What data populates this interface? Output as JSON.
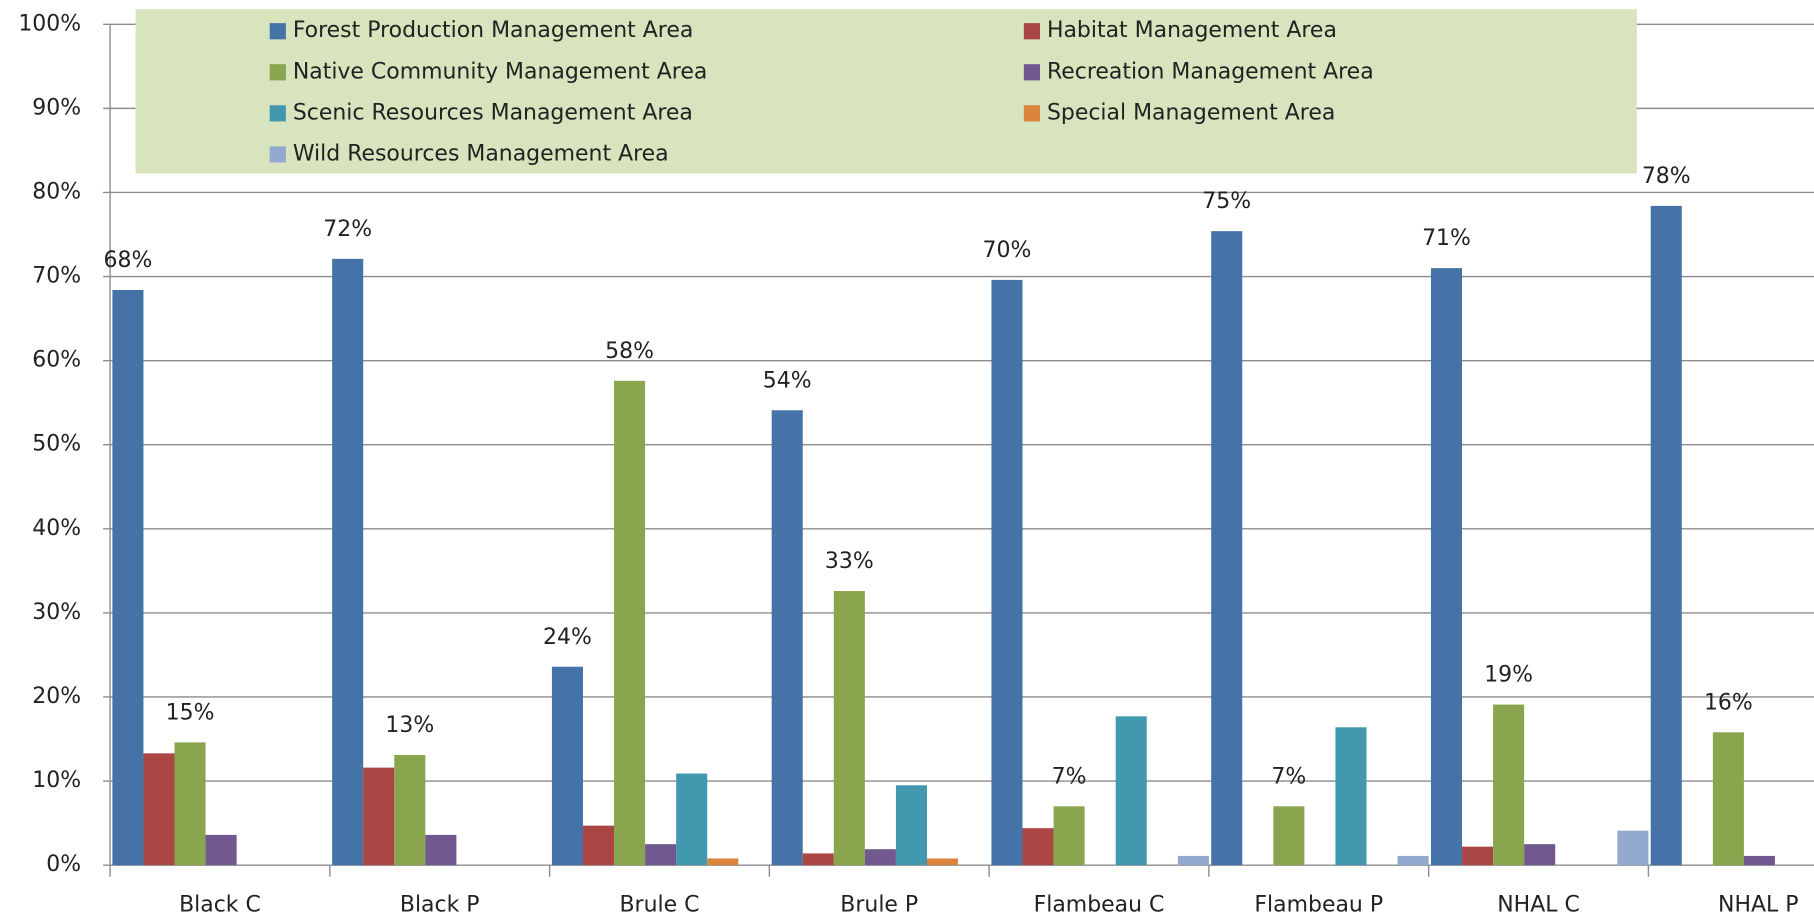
{
  "chart_data": {
    "type": "bar",
    "categories": [
      "Black C",
      "Black P",
      "Brule C",
      "Brule P",
      "Flambeau C",
      "Flambeau P",
      "NHAL C",
      "NHAL P"
    ],
    "series": [
      {
        "name": "Forest Production Management Area",
        "color": "#4572a7",
        "values": [
          68.4,
          72.1,
          23.6,
          54.1,
          69.6,
          75.4,
          71.0,
          78.4
        ],
        "value_labels": [
          "68%",
          "72%",
          "24%",
          "54%",
          "70%",
          "75%",
          "71%",
          "78%"
        ]
      },
      {
        "name": "Habitat Management Area",
        "color": "#aa4643",
        "values": [
          13.3,
          11.6,
          4.7,
          1.4,
          4.4,
          0,
          2.2,
          0
        ]
      },
      {
        "name": "Native Community Management Area",
        "color": "#89a54e",
        "values": [
          14.6,
          13.1,
          57.6,
          32.6,
          7.0,
          7.0,
          19.1,
          15.8
        ],
        "value_labels": [
          "15%",
          "13%",
          "58%",
          "33%",
          "7%",
          "7%",
          "19%",
          "16%"
        ]
      },
      {
        "name": "Recreation Management Area",
        "color": "#71588f",
        "values": [
          3.6,
          3.6,
          2.5,
          1.9,
          0,
          0,
          2.5,
          1.1
        ]
      },
      {
        "name": "Scenic Resources Management Area",
        "color": "#4198af",
        "values": [
          0,
          0,
          10.9,
          9.5,
          17.7,
          16.4,
          0,
          0
        ]
      },
      {
        "name": "Special Management Area",
        "color": "#db843d",
        "values": [
          0,
          0,
          0.8,
          0.8,
          0,
          0,
          0,
          0
        ]
      },
      {
        "name": "Wild Resources Management Area",
        "color": "#93a9cf",
        "values": [
          0,
          0,
          0,
          0,
          1.1,
          1.1,
          4.1,
          0
        ]
      }
    ],
    "ylim": [
      0,
      100
    ],
    "yticks": [
      {
        "value": 0,
        "label": "0%"
      },
      {
        "value": 10,
        "label": "10%"
      },
      {
        "value": 20,
        "label": "20%"
      },
      {
        "value": 30,
        "label": "30%"
      },
      {
        "value": 40,
        "label": "40%"
      },
      {
        "value": 50,
        "label": "50%"
      },
      {
        "value": 60,
        "label": "60%"
      },
      {
        "value": 70,
        "label": "70%"
      },
      {
        "value": 80,
        "label": "80%"
      },
      {
        "value": 90,
        "label": "90%"
      },
      {
        "value": 100,
        "label": "100%"
      }
    ],
    "grid": true,
    "legend": "top"
  }
}
